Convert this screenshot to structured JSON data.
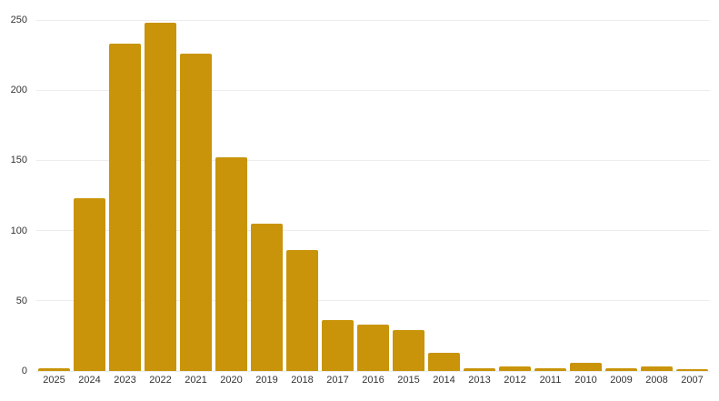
{
  "chart_data": {
    "type": "bar",
    "title": "",
    "xlabel": "",
    "ylabel": "",
    "categories": [
      "2025",
      "2024",
      "2023",
      "2022",
      "2021",
      "2020",
      "2019",
      "2018",
      "2017",
      "2016",
      "2015",
      "2014",
      "2013",
      "2012",
      "2011",
      "2010",
      "2009",
      "2008",
      "2007"
    ],
    "values": [
      2,
      123,
      233,
      248,
      226,
      152,
      105,
      86,
      36,
      33,
      29,
      13,
      2,
      3,
      2,
      6,
      2,
      3,
      1
    ],
    "ylim": [
      0,
      250
    ],
    "yticks": [
      0,
      50,
      100,
      150,
      200,
      250
    ],
    "grid": true,
    "legend": "none",
    "colors": {
      "bar": "#C9940A",
      "gridline": "#EDEDED",
      "tick_label": "#333333",
      "background": "#FFFFFF"
    }
  }
}
